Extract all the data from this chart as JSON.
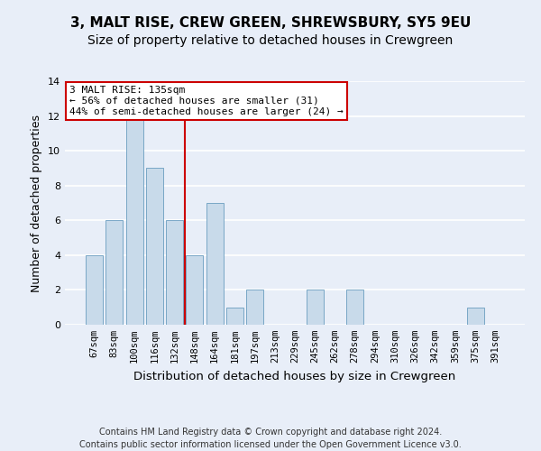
{
  "title": "3, MALT RISE, CREW GREEN, SHREWSBURY, SY5 9EU",
  "subtitle": "Size of property relative to detached houses in Crewgreen",
  "xlabel": "Distribution of detached houses by size in Crewgreen",
  "ylabel": "Number of detached properties",
  "categories": [
    "67sqm",
    "83sqm",
    "100sqm",
    "116sqm",
    "132sqm",
    "148sqm",
    "164sqm",
    "181sqm",
    "197sqm",
    "213sqm",
    "229sqm",
    "245sqm",
    "262sqm",
    "278sqm",
    "294sqm",
    "310sqm",
    "326sqm",
    "342sqm",
    "359sqm",
    "375sqm",
    "391sqm"
  ],
  "values": [
    4,
    6,
    12,
    9,
    6,
    4,
    7,
    1,
    2,
    0,
    0,
    2,
    0,
    2,
    0,
    0,
    0,
    0,
    0,
    1,
    0
  ],
  "bar_color": "#c8daea",
  "bar_edge_color": "#6a9dc0",
  "redline_index": 4.5,
  "annotation_text": "3 MALT RISE: 135sqm\n← 56% of detached houses are smaller (31)\n44% of semi-detached houses are larger (24) →",
  "annotation_box_color": "#ffffff",
  "annotation_box_edge_color": "#cc0000",
  "ylim": [
    0,
    14
  ],
  "yticks": [
    0,
    2,
    4,
    6,
    8,
    10,
    12,
    14
  ],
  "footer_text": "Contains HM Land Registry data © Crown copyright and database right 2024.\nContains public sector information licensed under the Open Government Licence v3.0.",
  "background_color": "#e8eef8",
  "plot_background_color": "#e8eef8",
  "grid_color": "#ffffff",
  "title_fontsize": 11,
  "subtitle_fontsize": 10,
  "axis_label_fontsize": 9,
  "tick_fontsize": 7.5,
  "footer_fontsize": 7,
  "annotation_fontsize": 8
}
